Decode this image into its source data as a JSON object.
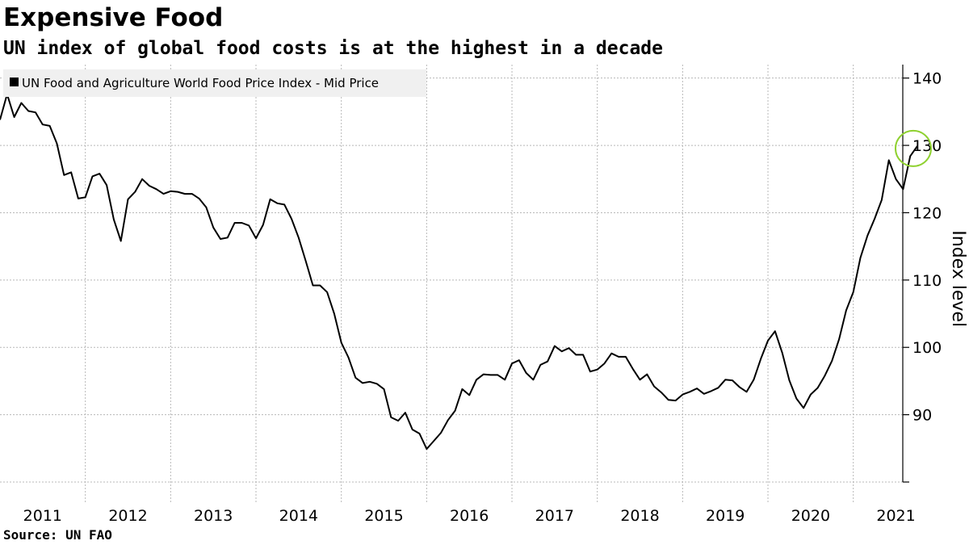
{
  "title": "Expensive Food",
  "subtitle": "UN index of global food costs is at the highest in a decade",
  "source": "Source: UN FAO",
  "colors": {
    "line": "#000000",
    "highlight_circle": "#8fd130",
    "grid": "#b8b8b8",
    "legend_bg": "#f0f0f0"
  },
  "chart_data": {
    "type": "line",
    "ylabel": "Index level",
    "ylim": [
      80,
      142
    ],
    "yticks": [
      90,
      100,
      110,
      120,
      130,
      140
    ],
    "xlim": [
      2011.0,
      2021.58
    ],
    "xticks": [
      {
        "label": "2011",
        "value": 2011
      },
      {
        "label": "2012",
        "value": 2012
      },
      {
        "label": "2013",
        "value": 2013
      },
      {
        "label": "2014",
        "value": 2014
      },
      {
        "label": "2015",
        "value": 2015
      },
      {
        "label": "2016",
        "value": 2016
      },
      {
        "label": "2017",
        "value": 2017
      },
      {
        "label": "2018",
        "value": 2018
      },
      {
        "label": "2019",
        "value": 2019
      },
      {
        "label": "2020",
        "value": 2020
      },
      {
        "label": "2021",
        "value": 2021
      }
    ],
    "grid": true,
    "legend": "top-left",
    "y_axis_position": "right",
    "highlight": "latest value circled (2021, ~129)",
    "series": [
      {
        "name": "UN Food and Agriculture World Food Price Index - Mid Price",
        "color": "#000000",
        "points": [
          [
            "2011-01",
            133.8
          ],
          [
            "2011-02",
            137.6
          ],
          [
            "2011-03",
            134.2
          ],
          [
            "2011-04",
            136.3
          ],
          [
            "2011-05",
            135.1
          ],
          [
            "2011-06",
            134.9
          ],
          [
            "2011-07",
            133.1
          ],
          [
            "2011-08",
            132.9
          ],
          [
            "2011-09",
            130.3
          ],
          [
            "2011-10",
            125.6
          ],
          [
            "2011-11",
            126.0
          ],
          [
            "2011-12",
            122.1
          ],
          [
            "2012-01",
            122.3
          ],
          [
            "2012-02",
            125.4
          ],
          [
            "2012-03",
            125.8
          ],
          [
            "2012-04",
            124.1
          ],
          [
            "2012-05",
            119.0
          ],
          [
            "2012-06",
            115.8
          ],
          [
            "2012-07",
            122.0
          ],
          [
            "2012-08",
            123.1
          ],
          [
            "2012-09",
            125.0
          ],
          [
            "2012-10",
            124.0
          ],
          [
            "2012-11",
            123.5
          ],
          [
            "2012-12",
            122.8
          ],
          [
            "2013-01",
            123.2
          ],
          [
            "2013-02",
            123.1
          ],
          [
            "2013-03",
            122.8
          ],
          [
            "2013-04",
            122.8
          ],
          [
            "2013-05",
            122.1
          ],
          [
            "2013-06",
            120.8
          ],
          [
            "2013-07",
            117.8
          ],
          [
            "2013-08",
            116.1
          ],
          [
            "2013-09",
            116.3
          ],
          [
            "2013-10",
            118.5
          ],
          [
            "2013-11",
            118.5
          ],
          [
            "2013-12",
            118.1
          ],
          [
            "2014-01",
            116.2
          ],
          [
            "2014-02",
            118.2
          ],
          [
            "2014-03",
            122.0
          ],
          [
            "2014-04",
            121.4
          ],
          [
            "2014-05",
            121.2
          ],
          [
            "2014-06",
            119.1
          ],
          [
            "2014-07",
            116.3
          ],
          [
            "2014-08",
            112.8
          ],
          [
            "2014-09",
            109.2
          ],
          [
            "2014-10",
            109.2
          ],
          [
            "2014-11",
            108.2
          ],
          [
            "2014-12",
            105.0
          ],
          [
            "2015-01",
            100.7
          ],
          [
            "2015-02",
            98.5
          ],
          [
            "2015-03",
            95.5
          ],
          [
            "2015-04",
            94.7
          ],
          [
            "2015-05",
            94.9
          ],
          [
            "2015-06",
            94.6
          ],
          [
            "2015-07",
            93.8
          ],
          [
            "2015-08",
            89.6
          ],
          [
            "2015-09",
            89.1
          ],
          [
            "2015-10",
            90.3
          ],
          [
            "2015-11",
            87.8
          ],
          [
            "2015-12",
            87.2
          ],
          [
            "2016-01",
            84.9
          ],
          [
            "2016-02",
            86.1
          ],
          [
            "2016-03",
            87.3
          ],
          [
            "2016-04",
            89.2
          ],
          [
            "2016-05",
            90.6
          ],
          [
            "2016-06",
            93.8
          ],
          [
            "2016-07",
            92.9
          ],
          [
            "2016-08",
            95.2
          ],
          [
            "2016-09",
            96.0
          ],
          [
            "2016-10",
            95.9
          ],
          [
            "2016-11",
            95.9
          ],
          [
            "2016-12",
            95.2
          ],
          [
            "2017-01",
            97.6
          ],
          [
            "2017-02",
            98.1
          ],
          [
            "2017-03",
            96.2
          ],
          [
            "2017-04",
            95.2
          ],
          [
            "2017-05",
            97.4
          ],
          [
            "2017-06",
            97.9
          ],
          [
            "2017-07",
            100.2
          ],
          [
            "2017-08",
            99.4
          ],
          [
            "2017-09",
            99.9
          ],
          [
            "2017-10",
            98.9
          ],
          [
            "2017-11",
            98.9
          ],
          [
            "2017-12",
            96.4
          ],
          [
            "2018-01",
            96.7
          ],
          [
            "2018-02",
            97.6
          ],
          [
            "2018-03",
            99.1
          ],
          [
            "2018-04",
            98.6
          ],
          [
            "2018-05",
            98.6
          ],
          [
            "2018-06",
            96.8
          ],
          [
            "2018-07",
            95.2
          ],
          [
            "2018-08",
            96.0
          ],
          [
            "2018-09",
            94.2
          ],
          [
            "2018-10",
            93.3
          ],
          [
            "2018-11",
            92.2
          ],
          [
            "2018-12",
            92.1
          ],
          [
            "2019-01",
            93.0
          ],
          [
            "2019-02",
            93.4
          ],
          [
            "2019-03",
            93.9
          ],
          [
            "2019-04",
            93.1
          ],
          [
            "2019-05",
            93.5
          ],
          [
            "2019-06",
            94.0
          ],
          [
            "2019-07",
            95.2
          ],
          [
            "2019-08",
            95.1
          ],
          [
            "2019-09",
            94.1
          ],
          [
            "2019-10",
            93.4
          ],
          [
            "2019-11",
            95.2
          ],
          [
            "2019-12",
            98.3
          ],
          [
            "2020-01",
            101.0
          ],
          [
            "2020-02",
            102.4
          ],
          [
            "2020-03",
            99.2
          ],
          [
            "2020-04",
            95.1
          ],
          [
            "2020-05",
            92.4
          ],
          [
            "2020-06",
            91.0
          ],
          [
            "2020-07",
            93.0
          ],
          [
            "2020-08",
            94.0
          ],
          [
            "2020-09",
            95.8
          ],
          [
            "2020-10",
            98.0
          ],
          [
            "2020-11",
            101.2
          ],
          [
            "2020-12",
            105.5
          ],
          [
            "2021-01",
            108.2
          ],
          [
            "2021-02",
            113.3
          ],
          [
            "2021-03",
            116.6
          ],
          [
            "2021-04",
            119.1
          ],
          [
            "2021-05",
            121.9
          ],
          [
            "2021-06",
            127.8
          ],
          [
            "2021-07",
            125.0
          ],
          [
            "2021-08",
            123.5
          ],
          [
            "2021-09",
            128.4
          ],
          [
            "2021-10",
            129.9
          ]
        ]
      }
    ]
  }
}
